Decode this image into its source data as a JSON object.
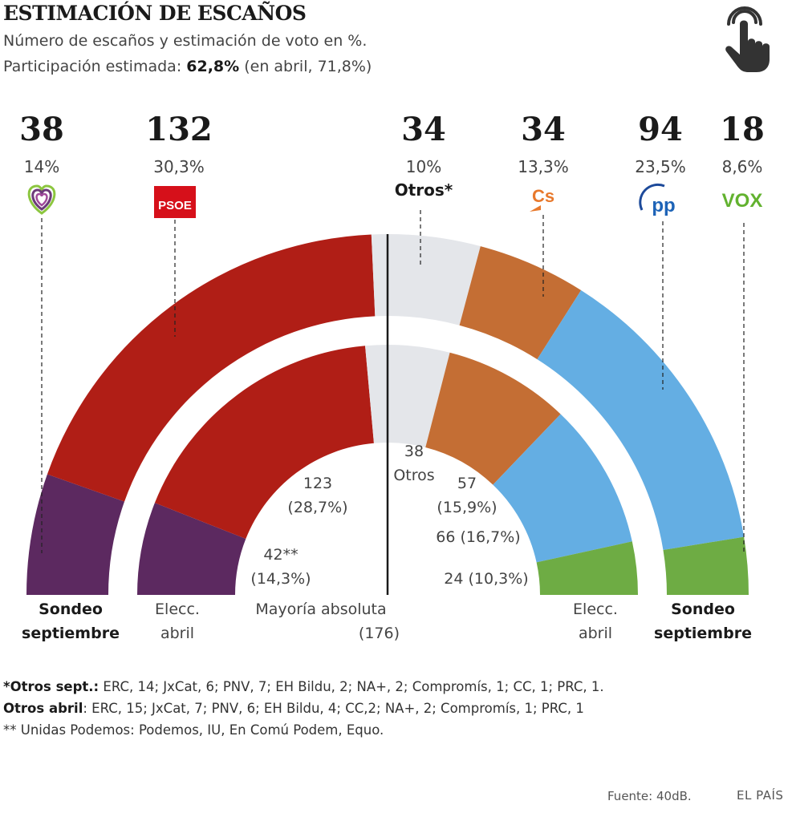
{
  "title": "ESTIMACIÓN DE ESCAÑOS",
  "subtitle": "Número de escaños y estimación de voto en %.",
  "turnout": {
    "prefix": "Participación estimada: ",
    "value": "62,8%",
    "suffix": " (en abril, 71,8%)"
  },
  "chart_data": {
    "type": "semicircle",
    "total_seats": 350,
    "majority": {
      "label": "Mayoría absoluta",
      "value": "(176)"
    },
    "ring_labels": {
      "outer": "Sondeo septiembre",
      "inner": "Elecc. abril",
      "outer_left": [
        "Sondeo",
        "septiembre"
      ],
      "inner_left": [
        "Elecc.",
        "abril"
      ],
      "inner_right": [
        "Elecc.",
        "abril"
      ],
      "outer_right": [
        "Sondeo",
        "septiembre"
      ]
    },
    "series": [
      {
        "name": "Sondeo septiembre",
        "values": [
          {
            "party": "Unidas Podemos",
            "seats": 38,
            "seats_label": "38",
            "pct_label": "14%",
            "color": "#5c2960"
          },
          {
            "party": "PSOE",
            "seats": 132,
            "seats_label": "132",
            "pct_label": "30,3%",
            "color": "#b01e16"
          },
          {
            "party": "Otros*",
            "seats": 34,
            "seats_label": "34",
            "pct_label": "10%",
            "color": "#e4e6ea"
          },
          {
            "party": "Cs",
            "seats": 34,
            "seats_label": "34",
            "pct_label": "13,3%",
            "color": "#c46e34"
          },
          {
            "party": "PP",
            "seats": 94,
            "seats_label": "94",
            "pct_label": "23,5%",
            "color": "#64aee3"
          },
          {
            "party": "VOX",
            "seats": 18,
            "seats_label": "18",
            "pct_label": "8,6%",
            "color": "#6eac44"
          }
        ]
      },
      {
        "name": "Elecc. abril",
        "values": [
          {
            "party": "Unidas Podemos",
            "seats": 42,
            "label": [
              "42**",
              "(14,3%)"
            ],
            "color": "#5c2960"
          },
          {
            "party": "PSOE",
            "seats": 123,
            "label": [
              "123",
              "(28,7%)"
            ],
            "color": "#b01e16"
          },
          {
            "party": "Otros",
            "seats": 38,
            "label": [
              "38",
              "Otros"
            ],
            "color": "#e4e6ea"
          },
          {
            "party": "Cs",
            "seats": 57,
            "label": [
              "57",
              "(15,9%)"
            ],
            "color": "#c46e34"
          },
          {
            "party": "PP",
            "seats": 66,
            "label": [
              "66 (16,7%)"
            ],
            "color": "#64aee3"
          },
          {
            "party": "VOX",
            "seats": 24,
            "label": [
              "24 (10,3%)"
            ],
            "color": "#6eac44"
          }
        ]
      }
    ],
    "logos": {
      "Unidas Podemos": "heart-logo",
      "PSOE": "PSOE",
      "Otros*": "Otros*",
      "Cs": "Cs",
      "PP": "pp",
      "VOX": "VOX"
    }
  },
  "footnotes": [
    {
      "bold": "*Otros sept.:",
      "text": " ERC, 14; JxCat, 6; PNV, 7; EH Bildu, 2; NA+, 2; Compromís, 1; CC, 1; PRC, 1."
    },
    {
      "bold": "Otros abril",
      "text": ": ERC, 15; JxCat, 7; PNV, 6; EH Bildu, 4; CC,2; NA+, 2; Compromís, 1; PRC, 1"
    },
    {
      "bold": "",
      "text": "** Unidas Podemos: Podemos, IU, En Comú Podem, Equo."
    }
  ],
  "source": "Fuente: 40dB.",
  "brand": "EL PAÍS",
  "icons": {
    "interactive": "hand-pointer-icon"
  }
}
